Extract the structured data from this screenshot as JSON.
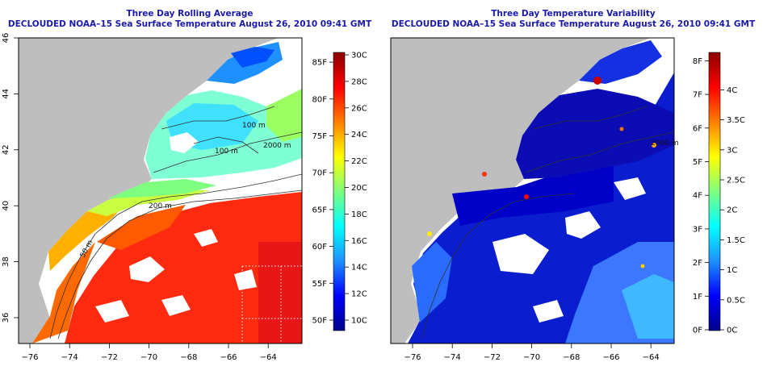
{
  "left_panel": {
    "title_line1": "Three Day Rolling Average",
    "title_line2": "DECLOUDED NOAA–15 Sea Surface Temperature August 26, 2010 09:41 GMT",
    "x_ticks": [
      "−76",
      "−74",
      "−72",
      "−70",
      "−68",
      "−66",
      "−64"
    ],
    "y_ticks": [
      "36",
      "38",
      "40",
      "42",
      "44",
      "46"
    ],
    "contour_labels": [
      "100 m",
      "100 m",
      "2000 m",
      "200 m",
      "50 m"
    ],
    "colorbar_fahrenheit": [
      "50F",
      "55F",
      "60F",
      "65F",
      "70F",
      "75F",
      "80F",
      "85F"
    ],
    "colorbar_celsius": [
      "10C",
      "12C",
      "14C",
      "16C",
      "18C",
      "20C",
      "22C",
      "24C",
      "26C",
      "28C",
      "30C"
    ],
    "colorbar_colors": [
      "#00008b",
      "#0000ff",
      "#1e90ff",
      "#00ffff",
      "#7fff7f",
      "#ffff00",
      "#ff7f00",
      "#ff0000",
      "#8b0000"
    ]
  },
  "right_panel": {
    "title_line1": "Three Day Temperature Variability",
    "title_line2": "DECLOUDED NOAA–15 Sea Surface Temperature August 26, 2010 09:41 GMT",
    "x_ticks": [
      "−76",
      "−74",
      "−72",
      "−70",
      "−68",
      "−66",
      "−64"
    ],
    "contour_labels": [
      "2000 m"
    ],
    "colorbar_fahrenheit": [
      "0F",
      "1F",
      "2F",
      "3F",
      "4F",
      "5F",
      "6F",
      "7F",
      "8F"
    ],
    "colorbar_celsius": [
      "0C",
      "0.5C",
      "1C",
      "1.5C",
      "2C",
      "2.5C",
      "3C",
      "3.5C",
      "4C"
    ],
    "colorbar_colors": [
      "#00008b",
      "#0000ff",
      "#1e90ff",
      "#00ffff",
      "#7fff7f",
      "#ffff00",
      "#ff7f00",
      "#ff0000",
      "#8b0000"
    ]
  }
}
